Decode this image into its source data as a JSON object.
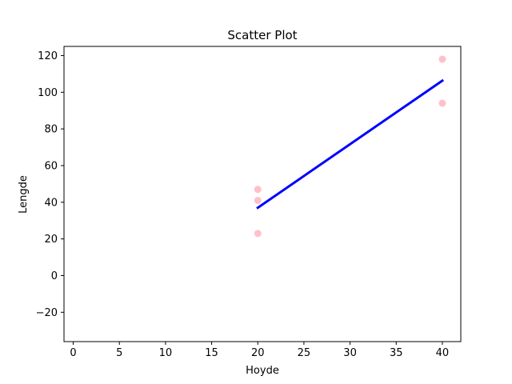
{
  "chart_data": {
    "type": "scatter",
    "title": "Scatter Plot",
    "xlabel": "Hoyde",
    "ylabel": "Lengde",
    "xlim": [
      -1,
      42
    ],
    "ylim": [
      -36,
      125
    ],
    "xticks": [
      0,
      5,
      10,
      15,
      20,
      25,
      30,
      35,
      40
    ],
    "yticks": [
      -20,
      0,
      20,
      40,
      60,
      80,
      100,
      120
    ],
    "ytick_labels": [
      "−20",
      "0",
      "20",
      "40",
      "60",
      "80",
      "100",
      "120"
    ],
    "grid": false,
    "legend": "none",
    "series": [
      {
        "type": "scatter",
        "color": "#ffc0cb",
        "x": [
          20,
          20,
          20,
          40,
          40
        ],
        "y": [
          47,
          41,
          23,
          118,
          94
        ]
      },
      {
        "type": "line",
        "color": "#0000ff",
        "x": [
          20,
          40
        ],
        "y": [
          37,
          106.3
        ]
      }
    ]
  }
}
